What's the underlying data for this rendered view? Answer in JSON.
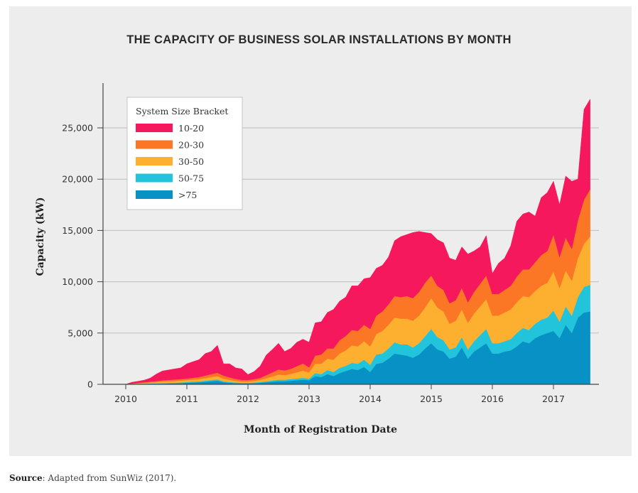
{
  "chart_data": {
    "type": "area",
    "stacked": true,
    "title": "THE CAPACITY OF BUSINESS SOLAR INSTALLATIONS BY MONTH",
    "xlabel": "Month of Registration Date",
    "ylabel": "Capacity (kW)",
    "ylim": [
      0,
      27800
    ],
    "yticks": [
      0,
      5000,
      10000,
      15000,
      20000,
      25000
    ],
    "ytick_labels": [
      "0",
      "5,000",
      "10,000",
      "15,000",
      "20,000",
      "25,000"
    ],
    "xticks": [
      2010,
      2011,
      2012,
      2013,
      2014,
      2015,
      2016,
      2017
    ],
    "xtick_labels": [
      "2010",
      "2011",
      "2012",
      "2013",
      "2014",
      "2015",
      "2016",
      "2017"
    ],
    "grid": "horizontal",
    "legend_title": "System Size Bracket",
    "legend_position": "top-left",
    "x": [
      2010.0,
      2010.1,
      2010.2,
      2010.3,
      2010.4,
      2010.5,
      2010.6,
      2010.7,
      2010.8,
      2010.9,
      2011.0,
      2011.1,
      2011.2,
      2011.3,
      2011.4,
      2011.5,
      2011.6,
      2011.7,
      2011.8,
      2011.9,
      2012.0,
      2012.1,
      2012.2,
      2012.3,
      2012.4,
      2012.5,
      2012.6,
      2012.7,
      2012.8,
      2012.9,
      2013.0,
      2013.1,
      2013.2,
      2013.3,
      2013.4,
      2013.5,
      2013.6,
      2013.7,
      2013.8,
      2013.9,
      2014.0,
      2014.1,
      2014.2,
      2014.3,
      2014.4,
      2014.5,
      2014.6,
      2014.7,
      2014.8,
      2014.9,
      2015.0,
      2015.1,
      2015.2,
      2015.3,
      2015.4,
      2015.5,
      2015.6,
      2015.7,
      2015.8,
      2015.9,
      2016.0,
      2016.1,
      2016.2,
      2016.3,
      2016.4,
      2016.5,
      2016.6,
      2016.7,
      2016.8,
      2016.9,
      2017.0,
      2017.1,
      2017.2,
      2017.3,
      2017.4,
      2017.5,
      2017.6
    ],
    "series": [
      {
        "name": ">75",
        "color": "#0791c4",
        "values": [
          0,
          10,
          20,
          30,
          40,
          50,
          60,
          80,
          100,
          120,
          150,
          180,
          200,
          250,
          300,
          350,
          200,
          150,
          120,
          100,
          100,
          120,
          150,
          200,
          250,
          300,
          300,
          350,
          400,
          450,
          400,
          800,
          700,
          1000,
          800,
          1100,
          1300,
          1500,
          1400,
          1700,
          1200,
          2000,
          2100,
          2500,
          3000,
          2900,
          2800,
          2600,
          2900,
          3500,
          4000,
          3400,
          3200,
          2500,
          2700,
          3600,
          2500,
          3200,
          3600,
          4000,
          3000,
          3000,
          3200,
          3300,
          3700,
          4200,
          4000,
          4500,
          4800,
          5000,
          5200,
          4500,
          5800,
          5000,
          6500,
          7000,
          7100
        ]
      },
      {
        "name": "50-75",
        "color": "#22c4dc",
        "values": [
          0,
          10,
          20,
          30,
          40,
          50,
          60,
          60,
          60,
          60,
          70,
          80,
          90,
          100,
          120,
          130,
          100,
          80,
          60,
          50,
          50,
          60,
          80,
          100,
          120,
          150,
          150,
          160,
          170,
          180,
          150,
          300,
          300,
          400,
          400,
          500,
          500,
          600,
          600,
          700,
          700,
          900,
          900,
          1000,
          1100,
          1000,
          1100,
          1000,
          1100,
          1200,
          1400,
          1200,
          1100,
          900,
          900,
          1000,
          900,
          1000,
          1200,
          1400,
          1000,
          1000,
          1000,
          1100,
          1300,
          1300,
          1300,
          1400,
          1500,
          1500,
          2000,
          1600,
          1800,
          1700,
          2000,
          2500,
          2600
        ]
      },
      {
        "name": "30-50",
        "color": "#fdb02f",
        "values": [
          0,
          40,
          60,
          80,
          100,
          120,
          150,
          160,
          170,
          180,
          190,
          200,
          220,
          250,
          280,
          300,
          250,
          200,
          150,
          120,
          120,
          150,
          200,
          300,
          400,
          500,
          450,
          500,
          600,
          700,
          600,
          900,
          1000,
          1100,
          1200,
          1400,
          1500,
          1700,
          1700,
          1800,
          1800,
          2000,
          2200,
          2300,
          2400,
          2500,
          2500,
          2600,
          2700,
          2800,
          3000,
          2900,
          2800,
          2500,
          2600,
          2700,
          2600,
          2700,
          2800,
          2900,
          2700,
          2700,
          2800,
          2900,
          3000,
          3100,
          3200,
          3200,
          3300,
          3400,
          3800,
          3300,
          3500,
          3400,
          3800,
          4200,
          4700
        ]
      },
      {
        "name": "20-30",
        "color": "#fb7726",
        "values": [
          0,
          30,
          50,
          60,
          80,
          100,
          120,
          130,
          140,
          150,
          160,
          180,
          200,
          250,
          300,
          350,
          300,
          250,
          200,
          150,
          150,
          180,
          200,
          300,
          400,
          500,
          450,
          500,
          600,
          700,
          500,
          800,
          900,
          1000,
          1100,
          1300,
          1400,
          1500,
          1500,
          1600,
          1700,
          1800,
          1900,
          2000,
          2100,
          2100,
          2200,
          2200,
          2300,
          2400,
          2200,
          2100,
          2100,
          2000,
          2000,
          2100,
          2000,
          2100,
          2200,
          2300,
          2100,
          2100,
          2200,
          2300,
          2500,
          2600,
          2700,
          2800,
          3000,
          3100,
          3600,
          3000,
          3200,
          3100,
          3700,
          4300,
          4600
        ]
      },
      {
        "name": "10-20",
        "color": "#f5185d",
        "values": [
          0,
          110,
          150,
          200,
          340,
          680,
          910,
          970,
          1030,
          1090,
          1430,
          1570,
          1690,
          2150,
          2200,
          2670,
          1150,
          1320,
          1070,
          1080,
          530,
          740,
          1150,
          1950,
          2230,
          2550,
          1850,
          1990,
          2330,
          2370,
          2450,
          3200,
          3200,
          3500,
          3800,
          3800,
          3800,
          4300,
          4400,
          4500,
          5000,
          4600,
          4500,
          4600,
          5400,
          5900,
          6000,
          6400,
          5900,
          4900,
          4100,
          4500,
          4600,
          4400,
          3900,
          4000,
          4700,
          4000,
          3600,
          3900,
          2000,
          3000,
          3100,
          3900,
          5400,
          5400,
          5600,
          4500,
          5600,
          5700,
          5200,
          5100,
          6000,
          6600,
          4000,
          8800,
          8800
        ]
      }
    ]
  }
}
